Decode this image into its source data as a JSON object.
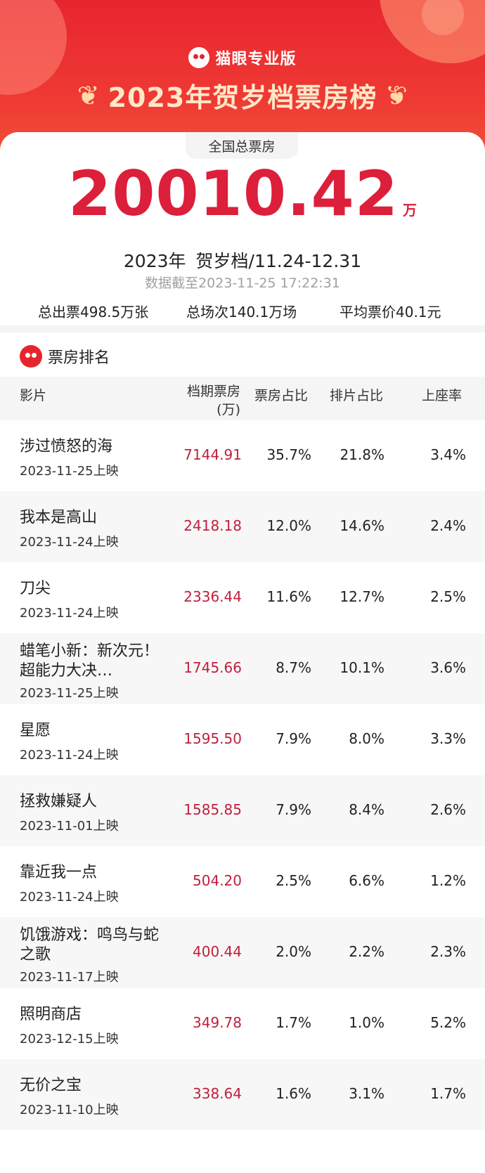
{
  "brand": {
    "name": "猫眼专业版"
  },
  "header": {
    "title": "2023年贺岁档票房榜",
    "laurel_left": "❦",
    "laurel_right": "❦"
  },
  "summary": {
    "label": "全国总票房",
    "total": "20010.42",
    "unit": "万",
    "year": "2023年",
    "period": "贺岁档/11.24-12.31",
    "cutoff": "数据截至2023-11-25 17:22:31",
    "tickets": "总出票498.5万张",
    "shows": "总场次140.1万场",
    "avg_price": "平均票价40.1元"
  },
  "ranking": {
    "title": "票房排名",
    "columns": {
      "film": "影片",
      "gross": "档期票房\n(万)",
      "share": "票房占比",
      "schedule": "排片占比",
      "occupancy": "上座率"
    },
    "rows": [
      {
        "name": "涉过愤怒的海",
        "date": "2023-11-25上映",
        "gross": "7144.91",
        "share": "35.7%",
        "schedule": "21.8%",
        "occupancy": "3.4%"
      },
      {
        "name": "我本是高山",
        "date": "2023-11-24上映",
        "gross": "2418.18",
        "share": "12.0%",
        "schedule": "14.6%",
        "occupancy": "2.4%"
      },
      {
        "name": "刀尖",
        "date": "2023-11-24上映",
        "gross": "2336.44",
        "share": "11.6%",
        "schedule": "12.7%",
        "occupancy": "2.5%"
      },
      {
        "name": "蜡笔小新：新次元！超能力大决…",
        "date": "2023-11-25上映",
        "gross": "1745.66",
        "share": "8.7%",
        "schedule": "10.1%",
        "occupancy": "3.6%"
      },
      {
        "name": "星愿",
        "date": "2023-11-24上映",
        "gross": "1595.50",
        "share": "7.9%",
        "schedule": "8.0%",
        "occupancy": "3.3%"
      },
      {
        "name": "拯救嫌疑人",
        "date": "2023-11-01上映",
        "gross": "1585.85",
        "share": "7.9%",
        "schedule": "8.4%",
        "occupancy": "2.6%"
      },
      {
        "name": "靠近我一点",
        "date": "2023-11-24上映",
        "gross": "504.20",
        "share": "2.5%",
        "schedule": "6.6%",
        "occupancy": "1.2%"
      },
      {
        "name": "饥饿游戏：鸣鸟与蛇之歌",
        "date": "2023-11-17上映",
        "gross": "400.44",
        "share": "2.0%",
        "schedule": "2.2%",
        "occupancy": "2.3%"
      },
      {
        "name": "照明商店",
        "date": "2023-12-15上映",
        "gross": "349.78",
        "share": "1.7%",
        "schedule": "1.0%",
        "occupancy": "5.2%"
      },
      {
        "name": "无价之宝",
        "date": "2023-11-10上映",
        "gross": "338.64",
        "share": "1.6%",
        "schedule": "3.1%",
        "occupancy": "1.7%"
      }
    ]
  }
}
